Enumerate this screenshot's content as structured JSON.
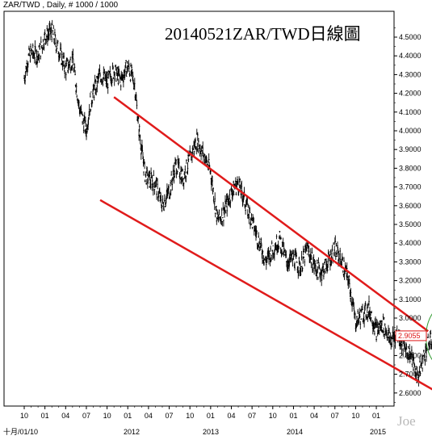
{
  "header_text": "ZAR/TWD , Daily, # 1000 / 1000",
  "watermark": "Joe",
  "chart_data": {
    "type": "line",
    "title": "20140521ZAR/TWD日線圖",
    "symbol": "ZAR/TWD",
    "period": "Daily",
    "bars": "# 1000 / 1000",
    "current_value": "2.9055",
    "ylim": [
      2.55,
      4.6
    ],
    "y_ticks": [
      "4.5000",
      "4.4000",
      "4.3000",
      "4.2000",
      "4.1000",
      "4.0000",
      "3.9000",
      "3.8000",
      "3.7000",
      "3.6000",
      "3.5000",
      "3.4000",
      "3.3000",
      "3.2000",
      "3.1000",
      "3.0000",
      "2.9000",
      "2.8000",
      "2.7000",
      "2.6000"
    ],
    "x_month_ticks": [
      "10",
      "01",
      "04",
      "07",
      "10",
      "01",
      "04",
      "07",
      "10",
      "01",
      "04",
      "07",
      "10",
      "01",
      "04",
      "07",
      "10",
      "01"
    ],
    "x_year_labels": [
      "十月/01/10",
      "2012",
      "2013",
      "2014",
      "2015"
    ],
    "x_month_range": [
      0,
      64
    ],
    "price_points": [
      [
        0,
        4.28
      ],
      [
        0.5,
        4.38
      ],
      [
        1,
        4.42
      ],
      [
        2,
        4.4
      ],
      [
        3,
        4.5
      ],
      [
        4,
        4.53
      ],
      [
        5,
        4.43
      ],
      [
        6,
        4.33
      ],
      [
        7,
        4.38
      ],
      [
        7.5,
        4.25
      ],
      [
        8,
        4.12
      ],
      [
        9,
        4.0
      ],
      [
        9.5,
        4.14
      ],
      [
        10,
        4.2
      ],
      [
        11,
        4.3
      ],
      [
        12,
        4.26
      ],
      [
        13,
        4.32
      ],
      [
        14,
        4.27
      ],
      [
        15,
        4.35
      ],
      [
        16,
        4.25
      ],
      [
        16.5,
        4.05
      ],
      [
        17,
        3.9
      ],
      [
        17.5,
        3.77
      ],
      [
        18,
        3.74
      ],
      [
        19,
        3.72
      ],
      [
        20,
        3.6
      ],
      [
        21,
        3.68
      ],
      [
        22,
        3.82
      ],
      [
        23,
        3.75
      ],
      [
        24,
        3.85
      ],
      [
        25,
        3.95
      ],
      [
        26,
        3.87
      ],
      [
        27,
        3.78
      ],
      [
        28,
        3.52
      ],
      [
        29,
        3.57
      ],
      [
        30,
        3.67
      ],
      [
        31,
        3.72
      ],
      [
        32,
        3.62
      ],
      [
        33,
        3.52
      ],
      [
        34,
        3.41
      ],
      [
        35,
        3.3
      ],
      [
        36,
        3.37
      ],
      [
        37,
        3.42
      ],
      [
        38,
        3.3
      ],
      [
        39,
        3.32
      ],
      [
        40,
        3.27
      ],
      [
        41,
        3.37
      ],
      [
        42,
        3.28
      ],
      [
        43,
        3.24
      ],
      [
        44,
        3.3
      ],
      [
        45,
        3.37
      ],
      [
        46,
        3.3
      ],
      [
        47,
        3.2
      ],
      [
        48,
        2.98
      ],
      [
        49,
        3.02
      ],
      [
        50,
        3.05
      ],
      [
        51,
        2.93
      ],
      [
        52,
        2.97
      ],
      [
        53,
        2.88
      ],
      [
        54,
        2.92
      ],
      [
        55,
        2.85
      ],
      [
        56,
        2.8
      ],
      [
        57,
        2.68
      ],
      [
        57.5,
        2.75
      ],
      [
        58,
        2.81
      ],
      [
        58.5,
        2.86
      ],
      [
        59,
        2.88
      ],
      [
        59.5,
        2.87
      ],
      [
        60,
        2.9
      ]
    ],
    "channel_upper": [
      [
        13,
        4.18
      ],
      [
        58.5,
        2.93
      ]
    ],
    "channel_lower": [
      [
        11,
        3.63
      ],
      [
        61,
        2.58
      ]
    ],
    "highlight_circle": {
      "center": [
        62,
        2.9
      ],
      "radius_x": 3.8,
      "radius_y": 0.19
    }
  }
}
